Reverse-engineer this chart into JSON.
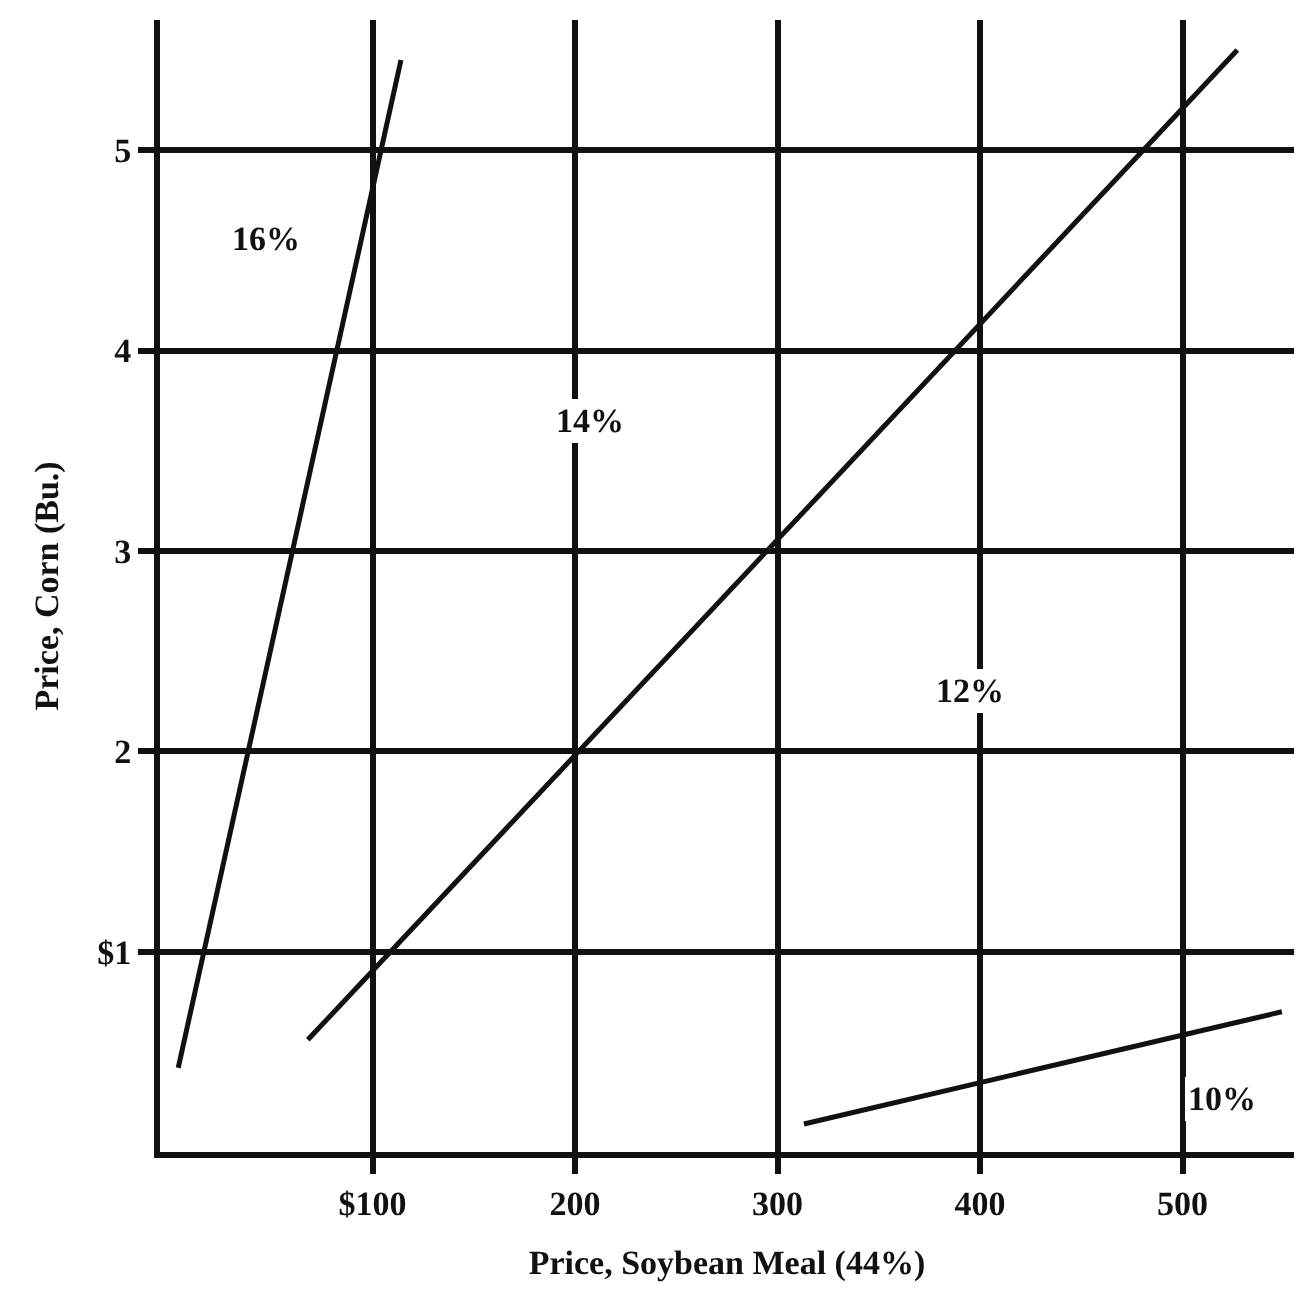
{
  "chart_data": {
    "type": "line",
    "xlabel": "Price, Soybean Meal (44%)",
    "ylabel": "Price, Corn (Bu.)",
    "series": [
      {
        "color": "#111111",
        "x": [
          4,
          114
        ],
        "values": [
          0.42,
          5.45
        ]
      },
      {
        "color": "#111111",
        "x": [
          68,
          527
        ],
        "values": [
          0.56,
          5.5
        ]
      },
      {
        "color": "#111111",
        "x": [
          313,
          549
        ],
        "values": [
          0.14,
          0.7
        ]
      }
    ],
    "annotations": [
      {
        "text": "16%",
        "x": 47,
        "y": 4.56
      },
      {
        "text": "14%",
        "x": 207,
        "y": 3.65
      },
      {
        "text": "12%",
        "x": 395,
        "y": 2.3
      },
      {
        "text": "10%",
        "x": 519,
        "y": 0.26
      }
    ],
    "xlim": [
      -5,
      555
    ],
    "ylim": [
      0,
      5.65
    ],
    "xticks": [
      {
        "value": 100,
        "label": "$100"
      },
      200,
      300,
      400,
      500
    ],
    "yticks": [
      {
        "value": 1,
        "label": "$1"
      },
      2,
      3,
      4,
      5
    ],
    "grid": true,
    "marker": "none",
    "line_style": "solid"
  }
}
